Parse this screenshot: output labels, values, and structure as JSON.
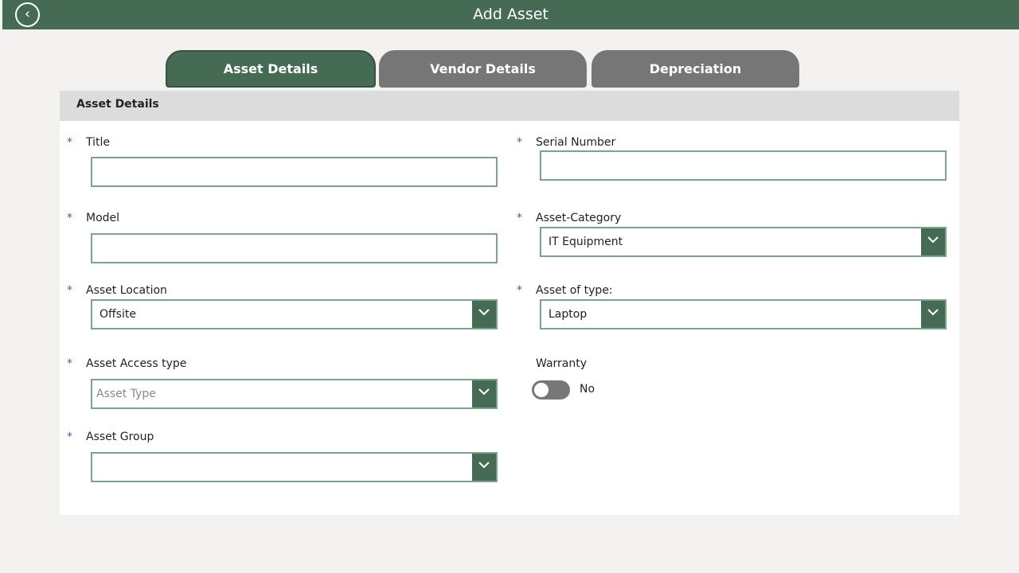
{
  "header": {
    "title": "Add Asset",
    "back_icon": "chevron-left-circle-icon"
  },
  "tabs": [
    {
      "label": "Asset Details",
      "active": true
    },
    {
      "label": "Vendor Details",
      "active": false
    },
    {
      "label": "Depreciation",
      "active": false
    }
  ],
  "section": {
    "title": "Asset Details"
  },
  "fields": {
    "title": {
      "label": "Title",
      "value": "",
      "required": true
    },
    "model": {
      "label": "Model",
      "value": "",
      "required": true
    },
    "location": {
      "label": "Asset Location",
      "value": "Offsite",
      "required": true
    },
    "access_type": {
      "label": "Asset Access type",
      "placeholder": "Asset Type",
      "required": true
    },
    "group": {
      "label": "Asset Group",
      "value": "",
      "required": true
    },
    "serial": {
      "label": "Serial Number",
      "value": "",
      "required": true
    },
    "category": {
      "label": "Asset-Category",
      "value": "IT Equipment",
      "required": true
    },
    "type": {
      "label": "Asset of type:",
      "value": "Laptop",
      "required": true
    },
    "warranty": {
      "label": "Warranty",
      "state": "No",
      "on": false
    }
  },
  "required_marker": "*",
  "colors": {
    "primary": "#466b55",
    "tab_inactive": "#767676",
    "required": "#4a5aa8"
  }
}
